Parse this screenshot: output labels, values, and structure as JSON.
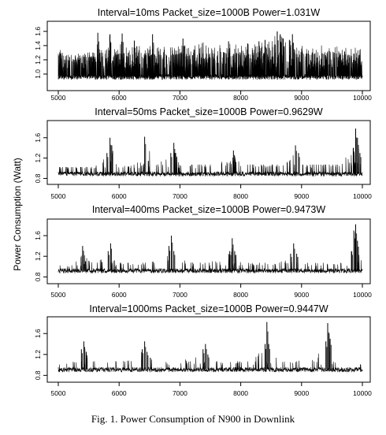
{
  "figure": {
    "caption": "Fig. 1.   Power Consumption of N900 in Downlink",
    "shared_ylabel": "Power Consumption (Watt)"
  },
  "chart_data": [
    {
      "type": "line",
      "title": "Interval=10ms Packet_size=1000B Power=1.031W",
      "xlabel": "",
      "ylabel": "",
      "xlim": [
        5000,
        10000
      ],
      "ylim": [
        0.9,
        1.62
      ],
      "x_ticks": [
        "5000",
        "6000",
        "7000",
        "8000",
        "9000",
        "10000"
      ],
      "y_ticks": [
        "1.0",
        "1.2",
        "1.4",
        "1.6"
      ],
      "series": [
        {
          "baseline": 0.97,
          "noise": 0.03,
          "density": 0.3,
          "peak_min": 1.08,
          "peak_max": 1.45,
          "x": [
            5000,
            5100,
            5200,
            5300,
            5400,
            5500,
            5600,
            5650,
            5700,
            5800,
            5850,
            5900,
            6000,
            6050,
            6100,
            6200,
            6250,
            6300,
            6400,
            6500,
            6550,
            6600,
            6700,
            6800,
            6900,
            7000,
            7050,
            7100,
            7200,
            7300,
            7400,
            7500,
            7600,
            7700,
            7800,
            7900,
            8000,
            8100,
            8200,
            8300,
            8400,
            8500,
            8600,
            8650,
            8700,
            8800,
            8850,
            8900,
            9000,
            9100,
            9200,
            9300,
            9400,
            9500,
            9600,
            9700,
            9800,
            9900,
            9950,
            10000
          ],
          "y": [
            1.38,
            1.26,
            1.24,
            1.28,
            1.3,
            1.3,
            1.34,
            1.58,
            1.34,
            1.38,
            1.56,
            1.36,
            1.34,
            1.57,
            1.4,
            1.34,
            1.47,
            1.42,
            1.36,
            1.38,
            1.56,
            1.38,
            1.4,
            1.38,
            1.4,
            1.38,
            1.5,
            1.36,
            1.38,
            1.42,
            1.45,
            1.4,
            1.44,
            1.4,
            1.46,
            1.42,
            1.4,
            1.44,
            1.42,
            1.46,
            1.48,
            1.44,
            1.6,
            1.56,
            1.5,
            1.48,
            1.56,
            1.4,
            1.4,
            1.36,
            1.38,
            1.42,
            1.4,
            1.42,
            1.38,
            1.4,
            1.36,
            1.42,
            1.4,
            1.36
          ]
        }
      ]
    },
    {
      "type": "line",
      "title": "Interval=50ms Packet_size=1000B Power=0.9629W",
      "xlabel": "",
      "ylabel": "",
      "xlim": [
        5000,
        10000
      ],
      "ylim": [
        0.76,
        1.86
      ],
      "x_ticks": [
        "5000",
        "6000",
        "7000",
        "8000",
        "9000",
        "10000"
      ],
      "y_ticks": [
        "0.8",
        "1.2",
        "1.6"
      ],
      "series": [
        {
          "baseline": 0.9,
          "noise": 0.035,
          "density": 0.07,
          "peak_min": 1.0,
          "peak_max": 1.25,
          "x": [
            5000,
            5200,
            5400,
            5600,
            5800,
            5850,
            5880,
            5920,
            6000,
            6200,
            6400,
            6420,
            6600,
            6850,
            6900,
            6930,
            7000,
            7200,
            7400,
            7600,
            7850,
            7880,
            7920,
            8000,
            8200,
            8400,
            8600,
            8850,
            8900,
            8950,
            9000,
            9200,
            9400,
            9600,
            9850,
            9890,
            9920,
            9960,
            10000
          ],
          "y": [
            1.0,
            1.0,
            1.0,
            1.0,
            1.3,
            1.6,
            1.45,
            1.25,
            1.0,
            1.05,
            1.2,
            1.62,
            1.05,
            1.3,
            1.5,
            1.3,
            1.05,
            1.05,
            1.05,
            1.05,
            1.2,
            1.35,
            1.2,
            1.05,
            1.05,
            1.05,
            1.05,
            1.2,
            1.45,
            1.3,
            1.05,
            1.05,
            1.05,
            1.05,
            1.4,
            1.78,
            1.6,
            1.3,
            1.0
          ]
        }
      ]
    },
    {
      "type": "line",
      "title": "Interval=400ms Packet_size=1000B Power=0.9473W",
      "xlabel": "",
      "ylabel": "",
      "xlim": [
        5000,
        10000
      ],
      "ylim": [
        0.76,
        1.86
      ],
      "x_ticks": [
        "5000",
        "6000",
        "7000",
        "8000",
        "9000",
        "10000"
      ],
      "y_ticks": [
        "0.8",
        "1.2",
        "1.6"
      ],
      "series": [
        {
          "baseline": 0.93,
          "noise": 0.035,
          "density": 0.05,
          "peak_min": 1.0,
          "peak_max": 1.2,
          "x": [
            5000,
            5200,
            5350,
            5400,
            5600,
            5820,
            5860,
            5900,
            6000,
            6200,
            6400,
            6600,
            6820,
            6860,
            6900,
            7000,
            7200,
            7400,
            7600,
            7820,
            7860,
            7900,
            8000,
            8200,
            8400,
            8600,
            8820,
            8870,
            8920,
            9000,
            9200,
            9400,
            9600,
            9820,
            9860,
            9890,
            9920,
            10000
          ],
          "y": [
            1.0,
            1.0,
            1.2,
            1.4,
            1.05,
            1.3,
            1.45,
            1.2,
            1.05,
            1.05,
            1.05,
            1.08,
            1.4,
            1.6,
            1.3,
            1.1,
            1.08,
            1.08,
            1.08,
            1.3,
            1.55,
            1.3,
            1.05,
            1.05,
            1.05,
            1.05,
            1.25,
            1.45,
            1.25,
            1.05,
            1.05,
            1.05,
            1.05,
            1.3,
            1.7,
            1.82,
            1.5,
            1.0
          ]
        }
      ]
    },
    {
      "type": "line",
      "title": "Interval=1000ms Packet_size=1000B Power=0.9447W",
      "xlabel": "",
      "ylabel": "",
      "xlim": [
        5000,
        10000
      ],
      "ylim": [
        0.76,
        1.86
      ],
      "x_ticks": [
        "5000",
        "6000",
        "7000",
        "8000",
        "9000",
        "10000"
      ],
      "y_ticks": [
        "0.8",
        "1.2",
        "1.6"
      ],
      "series": [
        {
          "baseline": 0.92,
          "noise": 0.035,
          "density": 0.04,
          "peak_min": 1.0,
          "peak_max": 1.12,
          "x": [
            5000,
            5200,
            5380,
            5420,
            5460,
            5600,
            5800,
            6000,
            6200,
            6380,
            6420,
            6460,
            6600,
            6800,
            7000,
            7200,
            7380,
            7420,
            7460,
            7600,
            7800,
            8000,
            8200,
            8400,
            8430,
            8460,
            8600,
            8800,
            9000,
            9200,
            9400,
            9430,
            9470,
            9600,
            9800,
            10000
          ],
          "y": [
            1.0,
            1.0,
            1.3,
            1.45,
            1.25,
            1.05,
            1.05,
            1.08,
            1.08,
            1.3,
            1.45,
            1.25,
            1.1,
            1.12,
            1.12,
            1.1,
            1.3,
            1.4,
            1.2,
            1.05,
            1.05,
            1.05,
            1.08,
            1.4,
            1.82,
            1.4,
            1.1,
            1.05,
            1.1,
            1.1,
            1.45,
            1.8,
            1.5,
            1.1,
            1.05,
            1.0
          ]
        }
      ]
    }
  ]
}
